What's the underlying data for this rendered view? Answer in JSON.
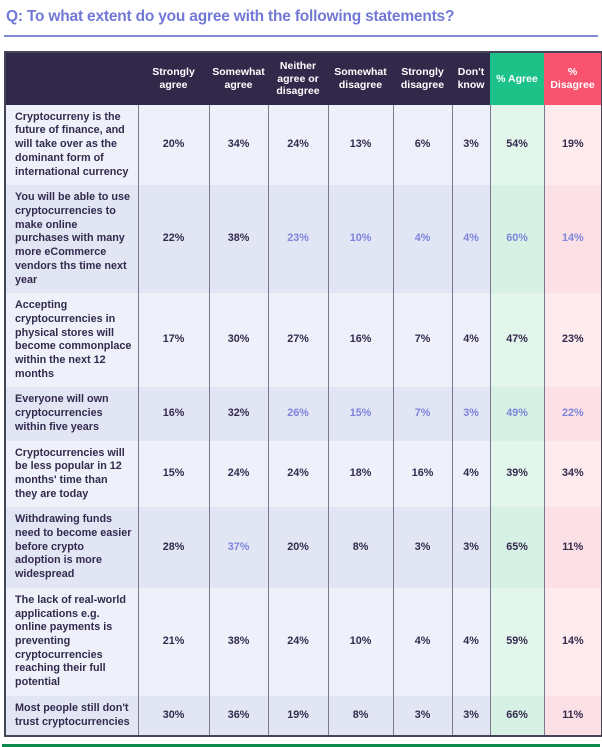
{
  "page": {
    "title": "Q: To what extent do you agree with the following statements?"
  },
  "colors": {
    "title_purple": "#7179d6",
    "rule_purple": "#8289d9",
    "header_bg": "#322849",
    "agree_green": "#1cc287",
    "disagree_pink": "#f85470",
    "text_dark": "#332a4d",
    "highlight_purple": "#7d84da",
    "row_light": "#eff1fa",
    "row_dark": "#e2e5f4",
    "agree_cell_light": "#e3f6ec",
    "agree_cell_dark": "#d7f1e4",
    "disagree_cell_light": "#fdebee",
    "disagree_cell_dark": "#fbe0e6",
    "grid_line": "#7a7a8d",
    "outer_border": "#45455a",
    "bottom_rule_green": "#0f8a4f"
  },
  "table": {
    "columns": [
      {
        "id": "strongly-agree",
        "label": "Strongly agree",
        "accent": "none"
      },
      {
        "id": "somewhat-agree",
        "label": "Somewhat agree",
        "accent": "none"
      },
      {
        "id": "neither-agree-or-disagree",
        "label": "Neither agree or disagree",
        "accent": "none"
      },
      {
        "id": "somewhat-disagree",
        "label": "Somewhat disagree",
        "accent": "none"
      },
      {
        "id": "strongly-disagree",
        "label": "Strongly disagree",
        "accent": "none"
      },
      {
        "id": "dont-know",
        "label": "Don't know",
        "accent": "none"
      },
      {
        "id": "pct-agree",
        "label": "% Agree",
        "accent": "green"
      },
      {
        "id": "pct-disagree",
        "label": "% Disagree",
        "accent": "pink"
      }
    ],
    "rows": [
      {
        "label": "Cryptocurreny is the future of finance, and will take over as the dominant form of international currency",
        "values": [
          "20%",
          "34%",
          "24%",
          "13%",
          "6%",
          "3%",
          "54%",
          "19%"
        ],
        "highlight": [
          false,
          false,
          false,
          false,
          false,
          false,
          false,
          false
        ]
      },
      {
        "label": "You will be able to use cryptocurrencies to make online purchases with many more eCommerce vendors ths time next year",
        "values": [
          "22%",
          "38%",
          "23%",
          "10%",
          "4%",
          "4%",
          "60%",
          "14%"
        ],
        "highlight": [
          false,
          false,
          true,
          true,
          true,
          true,
          true,
          true
        ]
      },
      {
        "label": "Accepting cryptocurrencies in physical stores will become commonplace within the next 12 months",
        "values": [
          "17%",
          "30%",
          "27%",
          "16%",
          "7%",
          "4%",
          "47%",
          "23%"
        ],
        "highlight": [
          false,
          false,
          false,
          false,
          false,
          false,
          false,
          false
        ]
      },
      {
        "label": "Everyone will own cryptocurrencies within five years",
        "values": [
          "16%",
          "32%",
          "26%",
          "15%",
          "7%",
          "3%",
          "49%",
          "22%"
        ],
        "highlight": [
          false,
          false,
          true,
          true,
          true,
          true,
          true,
          true
        ]
      },
      {
        "label": "Cryptocurrencies will be less popular in 12 months' time than they are today",
        "values": [
          "15%",
          "24%",
          "24%",
          "18%",
          "16%",
          "4%",
          "39%",
          "34%"
        ],
        "highlight": [
          false,
          false,
          false,
          false,
          false,
          false,
          false,
          false
        ]
      },
      {
        "label": "Withdrawing funds need to become easier before crypto adoption is more widespread",
        "values": [
          "28%",
          "37%",
          "20%",
          "8%",
          "3%",
          "3%",
          "65%",
          "11%"
        ],
        "highlight": [
          false,
          true,
          false,
          false,
          false,
          false,
          false,
          false
        ]
      },
      {
        "label": "The lack of real-world applications e.g. online payments is preventing cryptocurrencies reaching their full potential",
        "values": [
          "21%",
          "38%",
          "24%",
          "10%",
          "4%",
          "4%",
          "59%",
          "14%"
        ],
        "highlight": [
          false,
          false,
          false,
          false,
          false,
          false,
          false,
          false
        ]
      },
      {
        "label": "Most people still don't trust cryptocurrencies",
        "values": [
          "30%",
          "36%",
          "19%",
          "8%",
          "3%",
          "3%",
          "66%",
          "11%"
        ],
        "highlight": [
          false,
          false,
          false,
          false,
          false,
          false,
          false,
          false
        ]
      }
    ]
  },
  "chart_data": {
    "type": "table",
    "title": "Q: To what extent do you agree with the following statements?",
    "columns": [
      "Strongly agree",
      "Somewhat agree",
      "Neither agree or disagree",
      "Somewhat disagree",
      "Strongly disagree",
      "Don't know",
      "% Agree",
      "% Disagree"
    ],
    "rows": [
      {
        "statement": "Cryptocurreny is the future of finance, and will take over as the dominant form of international currency",
        "values_pct": [
          20,
          34,
          24,
          13,
          6,
          3,
          54,
          19
        ]
      },
      {
        "statement": "You will be able to use cryptocurrencies to make online purchases with many more eCommerce vendors ths time next year",
        "values_pct": [
          22,
          38,
          23,
          10,
          4,
          4,
          60,
          14
        ]
      },
      {
        "statement": "Accepting cryptocurrencies in physical stores will become commonplace within the next 12 months",
        "values_pct": [
          17,
          30,
          27,
          16,
          7,
          4,
          47,
          23
        ]
      },
      {
        "statement": "Everyone will own cryptocurrencies within five years",
        "values_pct": [
          16,
          32,
          26,
          15,
          7,
          3,
          49,
          22
        ]
      },
      {
        "statement": "Cryptocurrencies will be less popular in 12 months' time than they are today",
        "values_pct": [
          15,
          24,
          24,
          18,
          16,
          4,
          39,
          34
        ]
      },
      {
        "statement": "Withdrawing funds need to become easier before crypto adoption is more widespread",
        "values_pct": [
          28,
          37,
          20,
          8,
          3,
          3,
          65,
          11
        ]
      },
      {
        "statement": "The lack of real-world applications e.g. online payments is preventing cryptocurrencies reaching their full potential",
        "values_pct": [
          21,
          38,
          24,
          10,
          4,
          4,
          59,
          14
        ]
      },
      {
        "statement": "Most people still don't trust cryptocurrencies",
        "values_pct": [
          30,
          36,
          19,
          8,
          3,
          3,
          66,
          11
        ]
      }
    ]
  }
}
